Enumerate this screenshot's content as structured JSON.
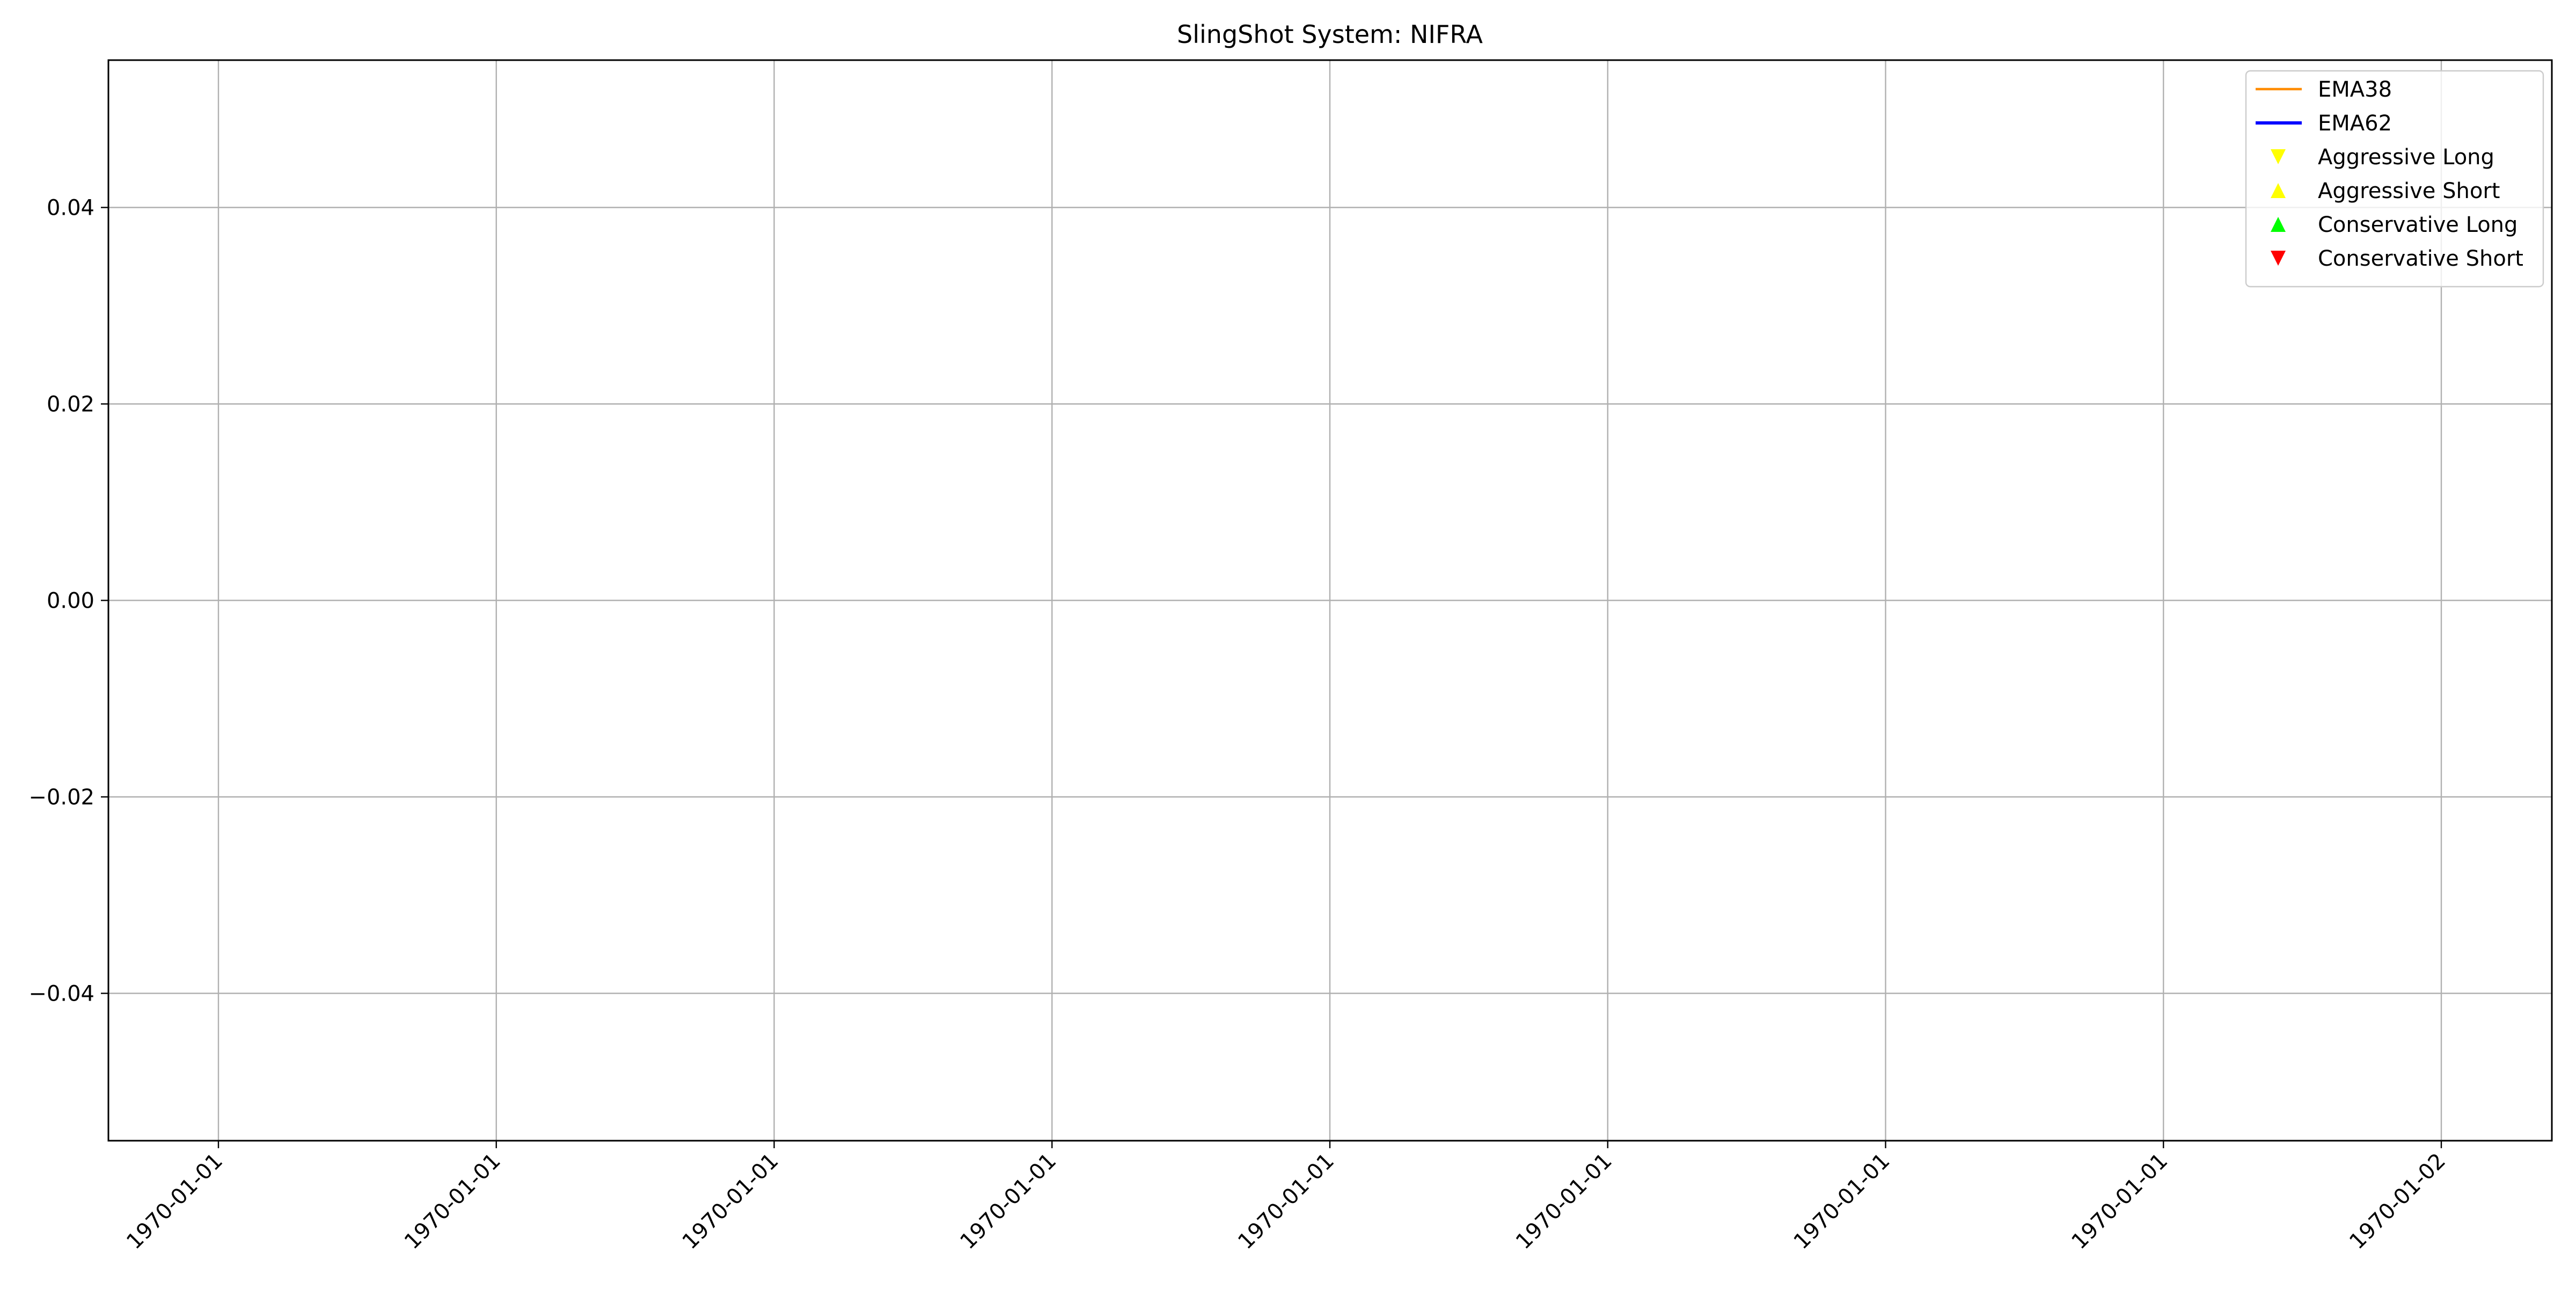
{
  "chart_data": {
    "type": "line",
    "title": "SlingShot System: NIFRA",
    "xlabel": "",
    "ylabel": "",
    "x_tick_labels": [
      "1970-01-01",
      "1970-01-01",
      "1970-01-01",
      "1970-01-01",
      "1970-01-01",
      "1970-01-01",
      "1970-01-01",
      "1970-01-01",
      "1970-01-02"
    ],
    "y_ticks": [
      0.04,
      0.02,
      0.0,
      -0.02,
      -0.04
    ],
    "y_tick_labels": [
      "0.04",
      "0.02",
      "0.00",
      "−0.02",
      "−0.04"
    ],
    "ylim": [
      -0.055,
      0.055
    ],
    "grid": true,
    "legend_position": "top-right",
    "series": [
      {
        "name": "EMA38",
        "kind": "line",
        "color": "#ff8c00",
        "values": []
      },
      {
        "name": "EMA62",
        "kind": "line",
        "color": "#0000ff",
        "values": []
      },
      {
        "name": "Aggressive Long",
        "kind": "marker",
        "marker": "triangle-down",
        "color": "#ffff00",
        "values": []
      },
      {
        "name": "Aggressive Short",
        "kind": "marker",
        "marker": "triangle-up",
        "color": "#ffff00",
        "values": []
      },
      {
        "name": "Conservative Long",
        "kind": "marker",
        "marker": "triangle-up",
        "color": "#00ff00",
        "values": []
      },
      {
        "name": "Conservative Short",
        "kind": "marker",
        "marker": "triangle-down",
        "color": "#ff0000",
        "values": []
      }
    ]
  }
}
